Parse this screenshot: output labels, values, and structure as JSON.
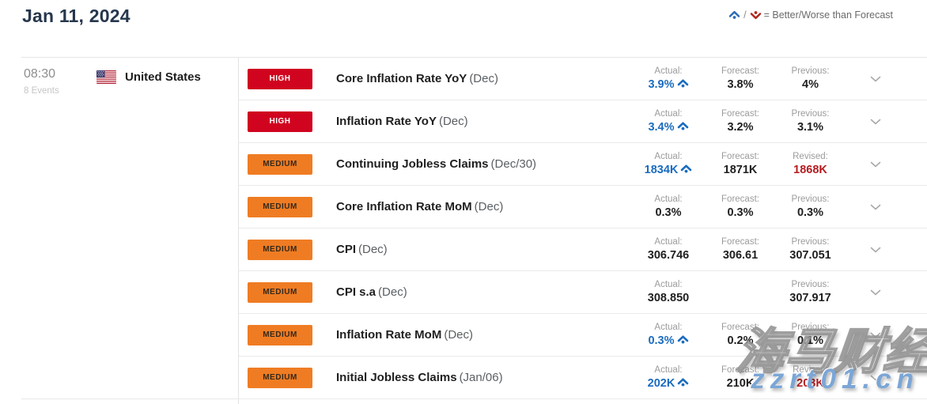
{
  "header": {
    "title": "Jan 11, 2024",
    "legend": {
      "better_icon": "caret-up-dot-icon",
      "worse_icon": "caret-down-dot-icon",
      "separator": "/",
      "text": "= Better/Worse than Forecast"
    }
  },
  "group": {
    "time": "08:30",
    "events_count": "8 Events",
    "country": "United States",
    "flag_icon": "us-flag-icon"
  },
  "events": [
    {
      "importance": "HIGH",
      "name": "Core Inflation Rate YoY",
      "period": "(Dec)",
      "actual": {
        "label": "Actual:",
        "value": "3.9%",
        "color": "blue",
        "arrow": true
      },
      "forecast": {
        "label": "Forecast:",
        "value": "3.8%",
        "color": "dark"
      },
      "previous": {
        "label": "Previous:",
        "value": "4%",
        "color": "dark"
      }
    },
    {
      "importance": "HIGH",
      "name": "Inflation Rate YoY",
      "period": "(Dec)",
      "actual": {
        "label": "Actual:",
        "value": "3.4%",
        "color": "blue",
        "arrow": true
      },
      "forecast": {
        "label": "Forecast:",
        "value": "3.2%",
        "color": "dark"
      },
      "previous": {
        "label": "Previous:",
        "value": "3.1%",
        "color": "dark"
      }
    },
    {
      "importance": "MEDIUM",
      "name": "Continuing Jobless Claims",
      "period": "(Dec/30)",
      "actual": {
        "label": "Actual:",
        "value": "1834K",
        "color": "blue",
        "arrow": true
      },
      "forecast": {
        "label": "Forecast:",
        "value": "1871K",
        "color": "dark"
      },
      "previous": {
        "label": "Revised:",
        "value": "1868K",
        "color": "red"
      }
    },
    {
      "importance": "MEDIUM",
      "name": "Core Inflation Rate MoM",
      "period": "(Dec)",
      "actual": {
        "label": "Actual:",
        "value": "0.3%",
        "color": "dark"
      },
      "forecast": {
        "label": "Forecast:",
        "value": "0.3%",
        "color": "dark"
      },
      "previous": {
        "label": "Previous:",
        "value": "0.3%",
        "color": "dark"
      }
    },
    {
      "importance": "MEDIUM",
      "name": "CPI",
      "period": "(Dec)",
      "actual": {
        "label": "Actual:",
        "value": "306.746",
        "color": "dark"
      },
      "forecast": {
        "label": "Forecast:",
        "value": "306.61",
        "color": "dark"
      },
      "previous": {
        "label": "Previous:",
        "value": "307.051",
        "color": "dark"
      }
    },
    {
      "importance": "MEDIUM",
      "name": "CPI s.a",
      "period": "(Dec)",
      "actual": {
        "label": "Actual:",
        "value": "308.850",
        "color": "dark"
      },
      "forecast": null,
      "previous": {
        "label": "Previous:",
        "value": "307.917",
        "color": "dark"
      }
    },
    {
      "importance": "MEDIUM",
      "name": "Inflation Rate MoM",
      "period": "(Dec)",
      "actual": {
        "label": "Actual:",
        "value": "0.3%",
        "color": "blue",
        "arrow": true
      },
      "forecast": {
        "label": "Forecast:",
        "value": "0.2%",
        "color": "dark"
      },
      "previous": {
        "label": "Previous:",
        "value": "0.1%",
        "color": "dark"
      }
    },
    {
      "importance": "MEDIUM",
      "name": "Initial Jobless Claims",
      "period": "(Jan/06)",
      "actual": {
        "label": "Actual:",
        "value": "202K",
        "color": "blue",
        "arrow": true
      },
      "forecast": {
        "label": "Forecast:",
        "value": "210K",
        "color": "dark"
      },
      "previous": {
        "label": "Revised:",
        "value": "203K",
        "color": "red"
      }
    }
  ],
  "watermark": {
    "line1": "海马财经",
    "line2": "zzrt01.cn"
  },
  "colors": {
    "accent_blue": "#1a6cc0",
    "accent_red": "#b51c20",
    "high_badge": "#d0041f",
    "medium_badge": "#ef7c23",
    "title_navy": "#26374d",
    "watermark_blue": "#7ba6d5"
  }
}
